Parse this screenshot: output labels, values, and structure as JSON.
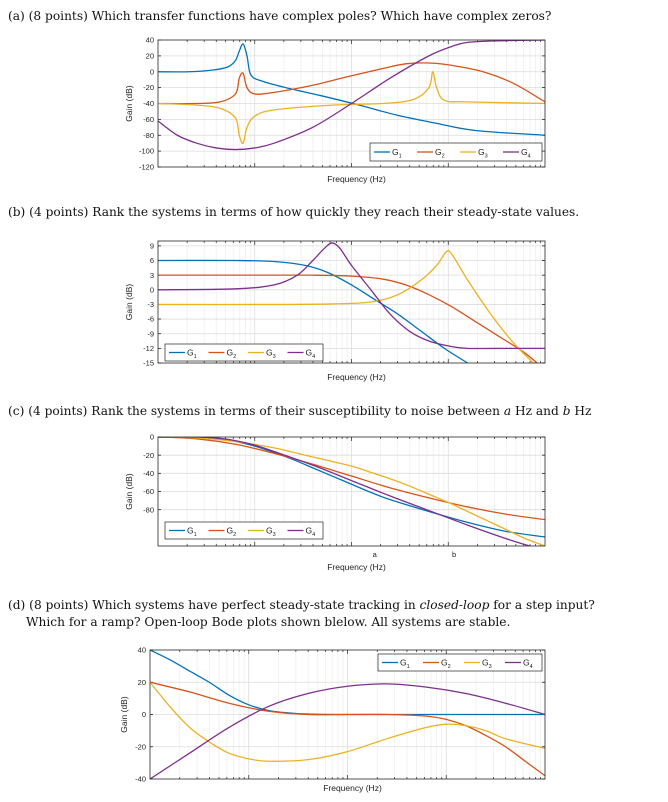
{
  "questions": [
    {
      "prefix": "(a) (8 points) Which transfer functions have complex poles? Which have complex zeros?"
    },
    {
      "prefix": "(b) (4 points) Rank the systems in terms of how quickly they reach their steady-state values."
    },
    {
      "prefix": "(c) (4 points) Rank the systems in terms of their susceptibility to noise between ",
      "a": "a",
      "mid": " Hz and ",
      "b": "b",
      "suffix": " Hz"
    },
    {
      "line1_a": "(d) (8 points) Which systems have perfect steady-state tracking in ",
      "line1_em": "closed-loop",
      "line1_b": " for a step input?",
      "line2": "Which for a ramp? Open-loop Bode plots shown blelow. All systems are stable."
    }
  ],
  "colors": {
    "G1": "#0072BD",
    "G2": "#D95319",
    "G3": "#EDB120",
    "G4": "#7E2F8E",
    "grid": "#e3e3e3",
    "axis": "#262626"
  },
  "chart_data": [
    {
      "id": "a",
      "type": "line",
      "xlabel": "Frequency (Hz)",
      "ylabel": "Gain (dB)",
      "ylim": [
        -120,
        40
      ],
      "yticks": [
        -120,
        -100,
        -80,
        -60,
        -40,
        -20,
        0,
        20,
        40
      ],
      "grid": true,
      "legend": "bottom-right",
      "series": [
        {
          "name": "G",
          "sub": "1",
          "color": "#0072BD",
          "x": [
            0,
            0.08,
            0.14,
            0.18,
            0.2,
            0.21,
            0.22,
            0.23,
            0.24,
            0.27,
            0.33,
            0.42,
            0.52,
            0.62,
            0.72,
            0.82,
            1.0
          ],
          "y": [
            0,
            0,
            2,
            6,
            14,
            26,
            35,
            20,
            -4,
            -12,
            -20,
            -30,
            -42,
            -55,
            -65,
            -74,
            -80
          ]
        },
        {
          "name": "G",
          "sub": "2",
          "color": "#D95319",
          "x": [
            0,
            0.1,
            0.16,
            0.2,
            0.21,
            0.22,
            0.23,
            0.25,
            0.3,
            0.4,
            0.5,
            0.58,
            0.64,
            0.7,
            0.76,
            0.84,
            0.92,
            1.0
          ],
          "y": [
            -40,
            -40,
            -38,
            -28,
            -8,
            -2,
            -20,
            -28,
            -26,
            -17,
            -5,
            4,
            10,
            11,
            8,
            0,
            -15,
            -38
          ]
        },
        {
          "name": "G",
          "sub": "3",
          "color": "#EDB120",
          "x": [
            0,
            0.1,
            0.16,
            0.2,
            0.21,
            0.22,
            0.23,
            0.25,
            0.3,
            0.45,
            0.58,
            0.66,
            0.7,
            0.71,
            0.72,
            0.74,
            0.8,
            1.0
          ],
          "y": [
            -40,
            -42,
            -46,
            -58,
            -80,
            -90,
            -70,
            -56,
            -48,
            -42,
            -40,
            -35,
            -20,
            0,
            -20,
            -36,
            -38,
            -40
          ]
        },
        {
          "name": "G",
          "sub": "4",
          "color": "#7E2F8E",
          "x": [
            0,
            0.05,
            0.1,
            0.15,
            0.2,
            0.25,
            0.3,
            0.4,
            0.5,
            0.6,
            0.7,
            0.76,
            0.8,
            0.88,
            1.0
          ],
          "y": [
            -62,
            -80,
            -90,
            -96,
            -98,
            -96,
            -90,
            -70,
            -40,
            -8,
            20,
            32,
            37,
            39,
            40
          ]
        }
      ]
    },
    {
      "id": "b",
      "type": "line",
      "xlabel": "Frequency (Hz)",
      "ylabel": "Gain (dB)",
      "ylim": [
        -15,
        10
      ],
      "yticks": [
        -15,
        -12,
        -9,
        -6,
        -3,
        0,
        3,
        6,
        9
      ],
      "grid": true,
      "legend": "bottom-left",
      "series": [
        {
          "name": "G",
          "sub": "1",
          "color": "#0072BD",
          "x": [
            0,
            0.2,
            0.3,
            0.38,
            0.44,
            0.5,
            0.56,
            0.62,
            0.68,
            0.74,
            0.8
          ],
          "y": [
            6,
            6,
            5.8,
            5,
            3.5,
            1,
            -2,
            -5,
            -8.5,
            -12,
            -15
          ]
        },
        {
          "name": "G",
          "sub": "2",
          "color": "#D95319",
          "x": [
            0,
            0.3,
            0.4,
            0.5,
            0.58,
            0.64,
            0.7,
            0.76,
            0.82,
            0.88,
            0.94,
            0.98
          ],
          "y": [
            3,
            3,
            3,
            2.8,
            2.2,
            1,
            -1,
            -3.5,
            -6.5,
            -9.5,
            -12.5,
            -15
          ]
        },
        {
          "name": "G",
          "sub": "3",
          "color": "#EDB120",
          "x": [
            0,
            0.3,
            0.45,
            0.55,
            0.62,
            0.68,
            0.72,
            0.745,
            0.76,
            0.8,
            0.86,
            0.92,
            0.97
          ],
          "y": [
            -3,
            -3,
            -2.9,
            -2.5,
            -1,
            2,
            5,
            7.8,
            7.2,
            2,
            -5,
            -11,
            -15
          ]
        },
        {
          "name": "G",
          "sub": "4",
          "color": "#7E2F8E",
          "x": [
            0,
            0.2,
            0.3,
            0.36,
            0.4,
            0.43,
            0.45,
            0.47,
            0.5,
            0.55,
            0.6,
            0.65,
            0.7,
            0.75,
            0.8,
            0.9,
            1.0
          ],
          "y": [
            0,
            0.2,
            1,
            3,
            6,
            8.5,
            9.6,
            8.5,
            5,
            0,
            -5,
            -8.5,
            -10.5,
            -11.5,
            -12,
            -12,
            -12
          ]
        }
      ]
    },
    {
      "id": "c",
      "type": "line",
      "xlabel": "Frequency (Hz)",
      "ylabel": "Gain (dB)",
      "ylim": [
        -120,
        0
      ],
      "yticks": [
        -80,
        -60,
        -40,
        -20,
        0
      ],
      "xmarkers": [
        {
          "label": "a",
          "x": 0.56
        },
        {
          "label": "b",
          "x": 0.765
        }
      ],
      "grid": true,
      "legend": "bottom-left",
      "series": [
        {
          "name": "G",
          "sub": "1",
          "color": "#0072BD",
          "x": [
            0,
            0.1,
            0.15,
            0.2,
            0.25,
            0.3,
            0.35,
            0.4,
            0.45,
            0.5,
            0.55,
            0.6,
            0.7,
            0.8,
            0.9,
            1.0
          ],
          "y": [
            0,
            -0.5,
            -2,
            -5,
            -10,
            -17,
            -25,
            -34,
            -43,
            -52,
            -61,
            -69,
            -82,
            -94,
            -104,
            -110
          ]
        },
        {
          "name": "G",
          "sub": "2",
          "color": "#D95319",
          "x": [
            0,
            0.1,
            0.2,
            0.3,
            0.4,
            0.5,
            0.6,
            0.7,
            0.8,
            0.9,
            1.0
          ],
          "y": [
            0,
            -2,
            -8,
            -18,
            -30,
            -43,
            -56,
            -67,
            -77,
            -85,
            -91
          ]
        },
        {
          "name": "G",
          "sub": "3",
          "color": "#EDB120",
          "x": [
            0,
            0.1,
            0.2,
            0.3,
            0.4,
            0.5,
            0.55,
            0.6,
            0.65,
            0.7,
            0.75,
            0.8,
            0.85,
            0.9,
            0.95,
            1.0
          ],
          "y": [
            0,
            -1,
            -5,
            -12,
            -22,
            -32,
            -39,
            -46,
            -54,
            -63,
            -72,
            -82,
            -92,
            -102,
            -112,
            -120
          ]
        },
        {
          "name": "G",
          "sub": "4",
          "color": "#7E2F8E",
          "x": [
            0,
            0.1,
            0.15,
            0.2,
            0.25,
            0.3,
            0.4,
            0.5,
            0.6,
            0.7,
            0.8,
            0.9,
            0.96
          ],
          "y": [
            0,
            0,
            -1,
            -4,
            -9,
            -16,
            -31,
            -48,
            -65,
            -81,
            -97,
            -112,
            -120
          ]
        }
      ]
    },
    {
      "id": "d",
      "type": "line",
      "xlabel": "Frequency (Hz)",
      "ylabel": "Gain (dB)",
      "ylim": [
        -40,
        40
      ],
      "yticks": [
        -40,
        -20,
        0,
        20,
        40
      ],
      "grid": true,
      "legend": "top-right",
      "series": [
        {
          "name": "G",
          "sub": "1",
          "color": "#0072BD",
          "x": [
            0,
            0.05,
            0.1,
            0.15,
            0.2,
            0.25,
            0.3,
            0.35,
            0.4,
            0.5,
            1.0
          ],
          "y": [
            40,
            34,
            27,
            20,
            12,
            6,
            2.5,
            1,
            0.3,
            0,
            0
          ]
        },
        {
          "name": "G",
          "sub": "2",
          "color": "#D95319",
          "x": [
            0,
            0.1,
            0.2,
            0.3,
            0.4,
            0.5,
            0.6,
            0.7,
            0.75,
            0.8,
            0.85,
            0.9,
            0.95,
            1.0
          ],
          "y": [
            20,
            14,
            7,
            2,
            0,
            0,
            0,
            -1,
            -3,
            -7,
            -13,
            -20,
            -29,
            -38
          ]
        },
        {
          "name": "G",
          "sub": "3",
          "color": "#EDB120",
          "x": [
            0,
            0.05,
            0.1,
            0.15,
            0.2,
            0.25,
            0.3,
            0.4,
            0.5,
            0.6,
            0.7,
            0.75,
            0.8,
            0.85,
            0.9,
            1.0
          ],
          "y": [
            20,
            5,
            -8,
            -17,
            -24,
            -27.5,
            -29,
            -28,
            -23,
            -15,
            -8,
            -6,
            -7,
            -10,
            -15,
            -21
          ]
        },
        {
          "name": "G",
          "sub": "4",
          "color": "#7E2F8E",
          "x": [
            0,
            0.1,
            0.2,
            0.3,
            0.4,
            0.5,
            0.6,
            0.7,
            0.8,
            0.9,
            1.0
          ],
          "y": [
            -40,
            -24,
            -8,
            5,
            13,
            17.5,
            19,
            17,
            13,
            7,
            0
          ]
        }
      ]
    }
  ]
}
